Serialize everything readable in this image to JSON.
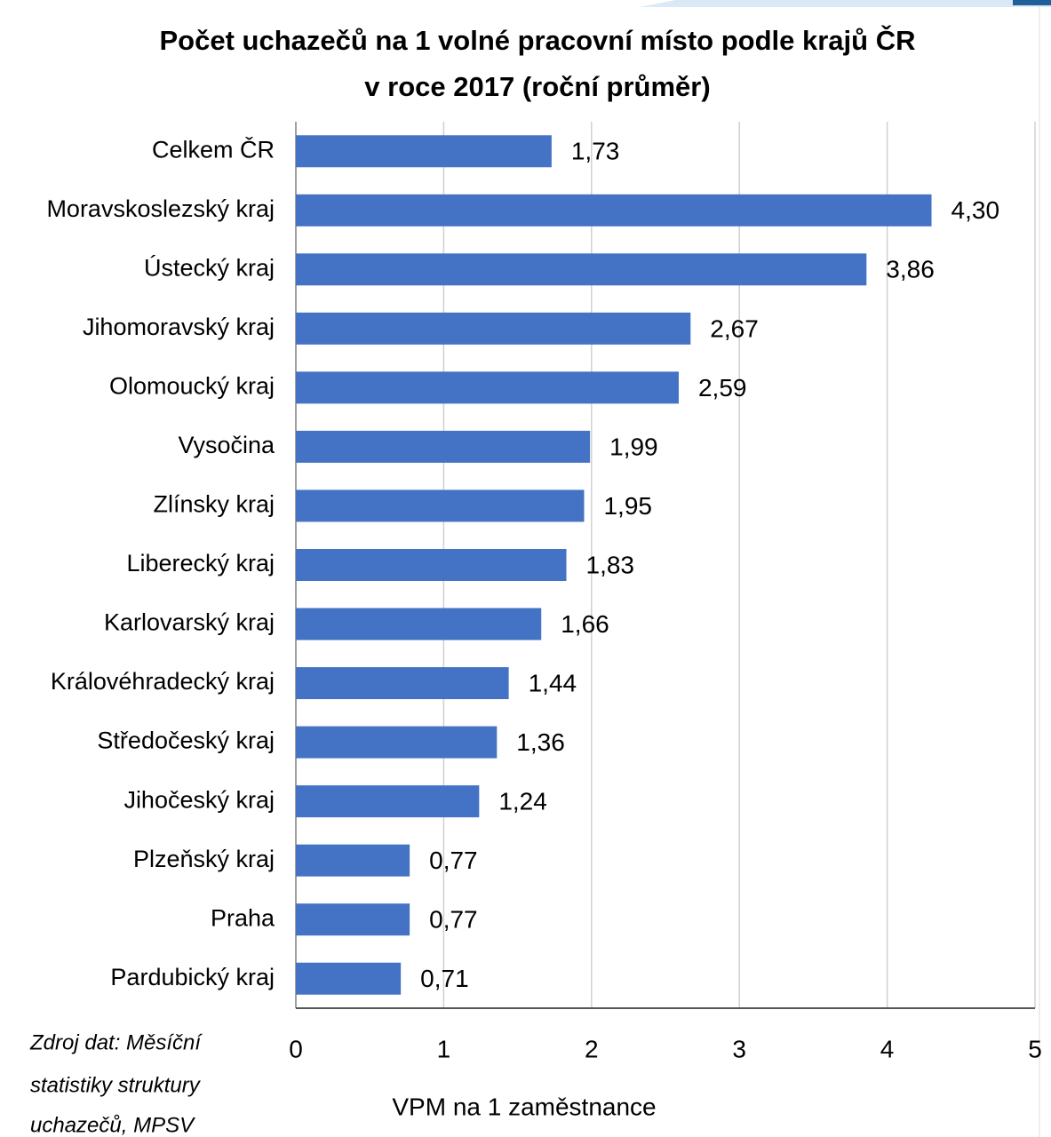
{
  "chart_data": {
    "type": "barh",
    "title": [
      "Počet uchazečů na 1 volné pracovní místo podle krajů ČR",
      "v roce 2017 (roční průměr)"
    ],
    "categories": [
      "Celkem ČR",
      "Moravskoslezský kraj",
      "Ústecký kraj",
      "Jihomoravský kraj",
      "Olomoucký kraj",
      "Vysočina",
      "Zlínsky kraj",
      "Liberecký kraj",
      "Karlovarský kraj",
      "Královéhradecký kraj",
      "Středočeský kraj",
      "Jihočeský kraj",
      "Plzeňský kraj",
      "Praha",
      "Pardubický kraj"
    ],
    "values": [
      1.73,
      4.3,
      3.86,
      2.67,
      2.59,
      1.99,
      1.95,
      1.83,
      1.66,
      1.44,
      1.36,
      1.24,
      0.77,
      0.77,
      0.71
    ],
    "value_labels": [
      "1,73",
      "4,30",
      "3,86",
      "2,67",
      "2,59",
      "1,99",
      "1,95",
      "1,83",
      "1,66",
      "1,44",
      "1,36",
      "1,24",
      "0,77",
      "0,77",
      "0,71"
    ],
    "color": "#4472c4",
    "xlim": [
      0,
      5
    ],
    "xticks": [
      0,
      1,
      2,
      3,
      4,
      5
    ],
    "grid": true,
    "xlabel": "VPM na 1 zaměstnance",
    "source": [
      "Zdroj dat: Měsíční",
      "statistiky struktury",
      "uchazečů, MPSV"
    ]
  }
}
